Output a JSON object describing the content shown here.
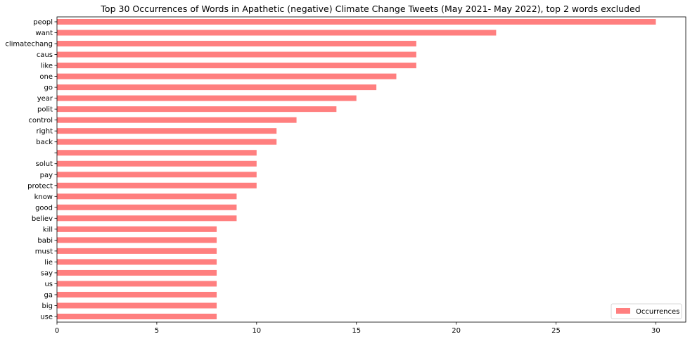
{
  "chart_data": {
    "type": "bar",
    "orientation": "horizontal",
    "title": "Top 30 Occurrences of Words in Apathetic (negative) Climate Change Tweets (May 2021- May 2022), top 2 words excluded",
    "xlabel": "",
    "ylabel": "",
    "xlim": [
      0,
      31.5
    ],
    "xticks": [
      0,
      5,
      10,
      15,
      20,
      25,
      30
    ],
    "grid": false,
    "legend": {
      "placement": "bottom-right"
    },
    "categories": [
      "peopl",
      "want",
      "climatechang",
      "caus",
      "like",
      "one",
      "go",
      "year",
      "polit",
      "control",
      "right",
      "back",
      "",
      "solut",
      "pay",
      "protect",
      "know",
      "good",
      "believ",
      "kill",
      "babi",
      "must",
      "lie",
      "say",
      "us",
      "ga",
      "big",
      "use"
    ],
    "series": [
      {
        "name": "Occurrences",
        "color": "#ff7f7f",
        "values": [
          30,
          22,
          18,
          18,
          18,
          17,
          16,
          15,
          14,
          12,
          11,
          11,
          10,
          10,
          10,
          10,
          9,
          9,
          9,
          8,
          8,
          8,
          8,
          8,
          8,
          8,
          8,
          8
        ]
      }
    ]
  }
}
